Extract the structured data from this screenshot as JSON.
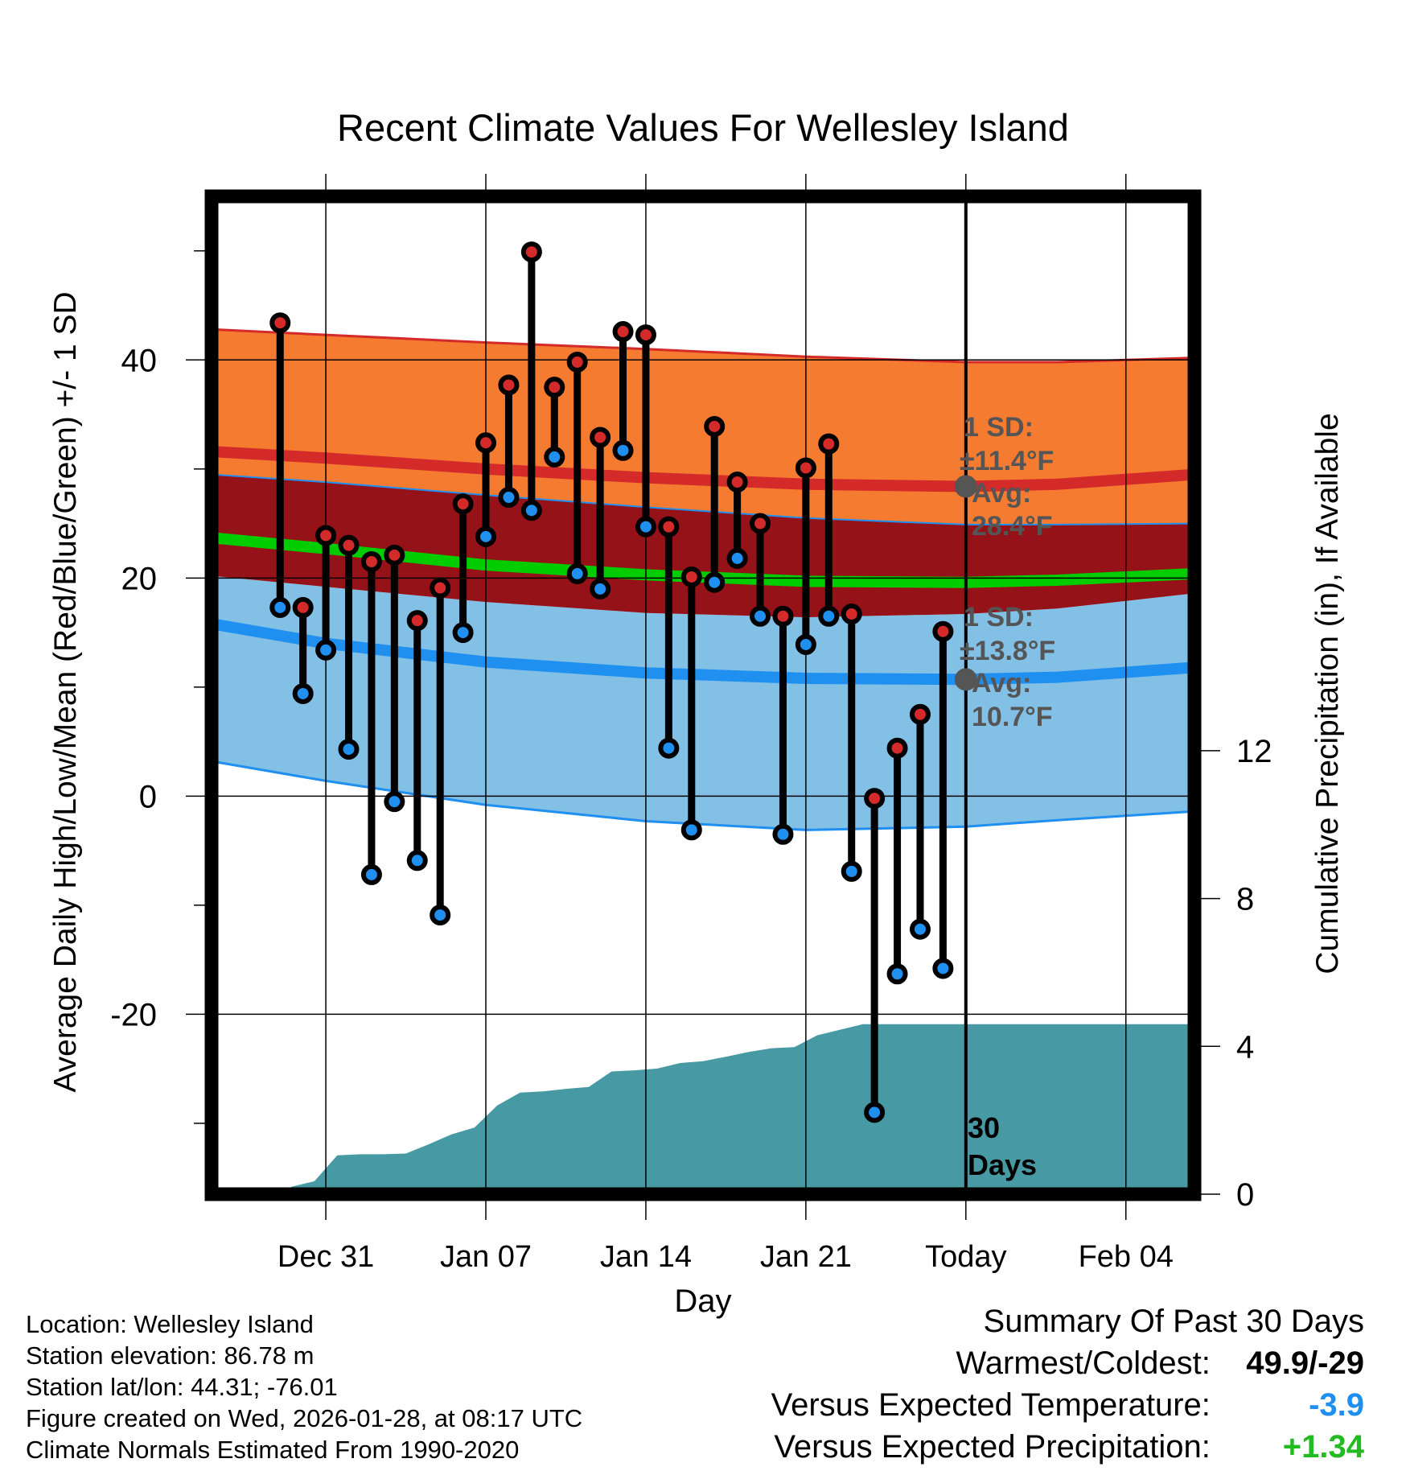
{
  "chart_data": {
    "type": "line",
    "title": "Recent Climate Values For Wellesley Island",
    "xlabel": "Day",
    "ylabel": "Average Daily High/Low/Mean (Red/Blue/Green) +/- 1 SD",
    "y2label": "Cumulative Precipitation (in), If Available",
    "x_range_days": [
      -33,
      10
    ],
    "xticks": [
      {
        "day": -28,
        "label": "Dec 31"
      },
      {
        "day": -21,
        "label": "Jan 07"
      },
      {
        "day": -14,
        "label": "Jan 14"
      },
      {
        "day": -7,
        "label": "Jan 21"
      },
      {
        "day": 0,
        "label": "Today"
      },
      {
        "day": 7,
        "label": "Feb 04"
      }
    ],
    "ylim": [
      -36.5,
      55
    ],
    "yticks": [
      -20,
      0,
      20,
      40
    ],
    "y2lim": [
      0,
      27
    ],
    "y2ticks": [
      0,
      4,
      8,
      12
    ],
    "today_label": "30\nDays",
    "highs": [
      43.4,
      17.3,
      23.9,
      23.0,
      21.5,
      22.1,
      16.1,
      19.1,
      26.8,
      32.4,
      37.7,
      49.9,
      37.5,
      39.8,
      32.9,
      42.6,
      42.3,
      24.7,
      20.1,
      33.9,
      28.8,
      25.0,
      16.5,
      30.1,
      32.3,
      16.7,
      -0.2,
      4.4,
      7.5,
      15.1
    ],
    "lows": [
      17.3,
      9.4,
      13.4,
      4.3,
      -7.2,
      -0.5,
      -5.9,
      -10.9,
      15.0,
      23.8,
      27.4,
      26.2,
      31.1,
      20.4,
      19.0,
      31.7,
      24.7,
      4.4,
      -3.1,
      19.6,
      21.8,
      16.5,
      -3.5,
      13.9,
      16.5,
      -6.9,
      -29.0,
      -16.3,
      -12.2,
      -15.8
    ],
    "precip_cumulative": [
      0.2,
      0.35,
      1.05,
      1.08,
      1.08,
      1.1,
      1.35,
      1.62,
      1.8,
      2.4,
      2.75,
      2.78,
      2.85,
      2.9,
      3.32,
      3.35,
      3.4,
      3.55,
      3.6,
      3.72,
      3.85,
      3.95,
      3.98,
      4.3,
      4.45,
      4.6
    ],
    "normal_band_days": [
      -33,
      -28,
      -21,
      -14,
      -7,
      0,
      4,
      10
    ],
    "normal_high_mean": [
      31.6,
      31.0,
      30.0,
      29.2,
      28.6,
      28.4,
      28.6,
      29.5
    ],
    "normal_high_upper": [
      42.8,
      42.3,
      41.6,
      41.0,
      40.3,
      39.8,
      39.8,
      40.2
    ],
    "normal_high_lower": [
      29.5,
      28.8,
      27.6,
      26.5,
      25.5,
      24.9,
      24.9,
      25.0
    ],
    "normal_low_mean": [
      15.8,
      14.0,
      12.3,
      11.3,
      10.8,
      10.7,
      10.9,
      11.8
    ],
    "normal_low_upper": [
      20.2,
      19.2,
      17.8,
      16.8,
      16.4,
      16.7,
      17.2,
      18.6
    ],
    "normal_low_lower": [
      3.2,
      1.4,
      -0.8,
      -2.3,
      -3.1,
      -2.8,
      -2.2,
      -1.4
    ],
    "normal_mean": [
      23.7,
      22.7,
      21.2,
      20.3,
      19.7,
      19.6,
      19.8,
      20.4
    ],
    "high_sd_text": "1 SD:",
    "high_sd_value": "±11.4°F",
    "high_avg_label": "Avg:",
    "high_avg_value": "28.4°F",
    "low_sd_text": "1 SD:",
    "low_sd_value": "±13.8°F",
    "low_avg_label": "Avg:",
    "low_avg_value": "10.7°F",
    "colors": {
      "high_band": "#f47b30",
      "high_line": "#d42a2a",
      "overlap_band": "#951218",
      "low_band": "#82c0e6",
      "low_line": "#1f8ff0",
      "mean_line": "#00cc00",
      "precip": "#479aa4",
      "high_point": "#d42a2a",
      "low_point": "#1f8ff0"
    }
  },
  "info": {
    "location": "Location: Wellesley Island",
    "elevation": "Station elevation: 86.78 m",
    "latlon": "Station lat/lon: 44.31; -76.01",
    "created": "Figure created on Wed, 2026-01-28, at 08:17 UTC",
    "normals": "Climate Normals Estimated From 1990-2020"
  },
  "summary": {
    "title": "Summary Of Past 30 Days",
    "warm_cold_label": "Warmest/Coldest:",
    "warm_cold_value": "49.9/-29",
    "temp_label": "Versus Expected Temperature:",
    "temp_value": "-3.9",
    "temp_color": "#1f8ff0",
    "precip_label": "Versus Expected Precipitation:",
    "precip_value": "+1.34",
    "precip_color": "#22bb22"
  }
}
